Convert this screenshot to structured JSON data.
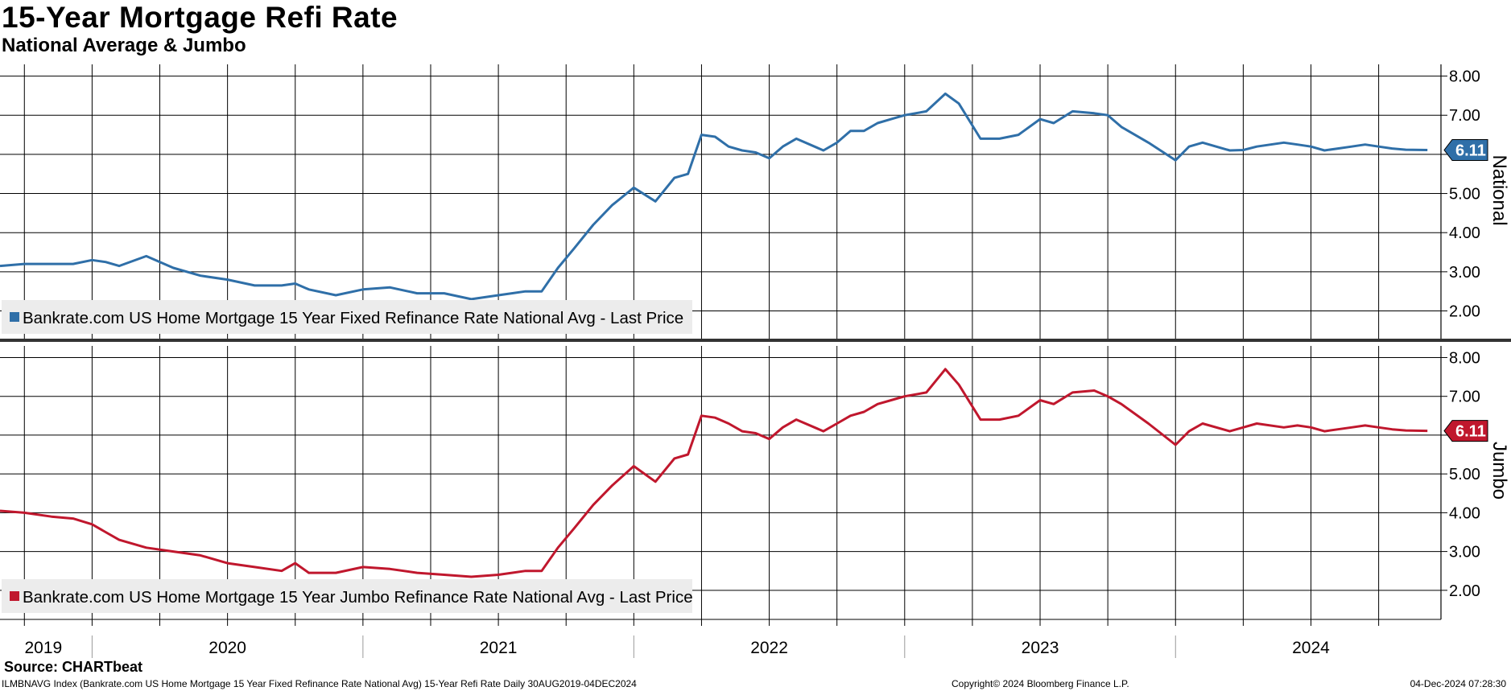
{
  "title": "15-Year Mortgage Refi Rate",
  "subtitle": "National Average & Jumbo",
  "source": "Source: CHARTbeat",
  "footer": {
    "left": "ILMBNAVG Index (Bankrate.com US Home Mortgage 15 Year Fixed Refinance Rate National Avg) 15-Year Refi Rate  Daily 30AUG2019-04DEC2024",
    "center": "Copyright© 2024 Bloomberg Finance L.P.",
    "right": "04-Dec-2024 07:28:30"
  },
  "colors": {
    "national": "#2f6fa8",
    "jumbo": "#c0172d",
    "grid": "#000000"
  },
  "chart_data": [
    {
      "type": "line",
      "panel_label": "National",
      "legend": "Bankrate.com US Home Mortgage 15 Year Fixed Refinance Rate National Avg - Last Price",
      "last_value_label": "6.11",
      "ylim": [
        1.25,
        8.3
      ],
      "yticks": [
        2.0,
        3.0,
        4.0,
        5.0,
        6.0,
        7.0,
        8.0
      ],
      "ytick_labels": [
        "2.00",
        "3.00",
        "4.00",
        "5.00",
        "6.00",
        "7.00",
        "8.00"
      ],
      "x": [
        2019.66,
        2019.75,
        2019.85,
        2019.93,
        2020.0,
        2020.05,
        2020.1,
        2020.2,
        2020.3,
        2020.4,
        2020.5,
        2020.6,
        2020.7,
        2020.75,
        2020.8,
        2020.9,
        2021.0,
        2021.1,
        2021.2,
        2021.3,
        2021.4,
        2021.5,
        2021.55,
        2021.6,
        2021.66,
        2021.72,
        2021.78,
        2021.85,
        2021.92,
        2022.0,
        2022.08,
        2022.15,
        2022.2,
        2022.25,
        2022.3,
        2022.35,
        2022.4,
        2022.45,
        2022.5,
        2022.55,
        2022.6,
        2022.7,
        2022.75,
        2022.8,
        2022.85,
        2022.9,
        2022.95,
        2023.0,
        2023.08,
        2023.15,
        2023.2,
        2023.28,
        2023.35,
        2023.42,
        2023.5,
        2023.55,
        2023.62,
        2023.7,
        2023.75,
        2023.8,
        2023.9,
        2024.0,
        2024.05,
        2024.1,
        2024.2,
        2024.25,
        2024.3,
        2024.4,
        2024.45,
        2024.5,
        2024.55,
        2024.6,
        2024.65,
        2024.7,
        2024.75,
        2024.8,
        2024.85,
        2024.93
      ],
      "y": [
        3.15,
        3.2,
        3.2,
        3.2,
        3.3,
        3.25,
        3.15,
        3.4,
        3.1,
        2.9,
        2.8,
        2.65,
        2.65,
        2.7,
        2.55,
        2.4,
        2.55,
        2.6,
        2.45,
        2.45,
        2.3,
        2.4,
        2.45,
        2.5,
        2.5,
        3.1,
        3.6,
        4.2,
        4.7,
        5.15,
        4.8,
        5.4,
        5.5,
        6.5,
        6.45,
        6.2,
        6.1,
        6.05,
        5.9,
        6.2,
        6.4,
        6.1,
        6.3,
        6.6,
        6.6,
        6.8,
        6.9,
        7.0,
        7.1,
        7.55,
        7.3,
        6.4,
        6.4,
        6.5,
        6.9,
        6.8,
        7.1,
        7.05,
        7.0,
        6.7,
        6.3,
        5.85,
        6.2,
        6.3,
        6.1,
        6.11,
        6.2,
        6.3,
        6.25,
        6.2,
        6.1,
        6.15,
        6.2,
        6.25,
        6.2,
        6.15,
        6.12,
        6.11
      ]
    },
    {
      "type": "line",
      "panel_label": "Jumbo",
      "legend": "Bankrate.com US Home Mortgage 15 Year Jumbo Refinance Rate National Avg - Last Price",
      "last_value_label": "6.11",
      "ylim": [
        1.25,
        8.3
      ],
      "yticks": [
        2.0,
        3.0,
        4.0,
        5.0,
        6.0,
        7.0,
        8.0
      ],
      "ytick_labels": [
        "2.00",
        "3.00",
        "4.00",
        "5.00",
        "6.00",
        "7.00",
        "8.00"
      ],
      "x": [
        2019.66,
        2019.75,
        2019.85,
        2019.93,
        2020.0,
        2020.05,
        2020.1,
        2020.2,
        2020.3,
        2020.4,
        2020.5,
        2020.6,
        2020.7,
        2020.75,
        2020.8,
        2020.9,
        2021.0,
        2021.1,
        2021.2,
        2021.3,
        2021.4,
        2021.5,
        2021.55,
        2021.6,
        2021.66,
        2021.72,
        2021.78,
        2021.85,
        2021.92,
        2022.0,
        2022.08,
        2022.15,
        2022.2,
        2022.25,
        2022.3,
        2022.35,
        2022.4,
        2022.45,
        2022.5,
        2022.55,
        2022.6,
        2022.7,
        2022.75,
        2022.8,
        2022.85,
        2022.9,
        2022.95,
        2023.0,
        2023.08,
        2023.15,
        2023.2,
        2023.28,
        2023.35,
        2023.42,
        2023.5,
        2023.55,
        2023.62,
        2023.7,
        2023.75,
        2023.8,
        2023.9,
        2024.0,
        2024.05,
        2024.1,
        2024.2,
        2024.25,
        2024.3,
        2024.4,
        2024.45,
        2024.5,
        2024.55,
        2024.6,
        2024.65,
        2024.7,
        2024.75,
        2024.8,
        2024.85,
        2024.93
      ],
      "y": [
        4.05,
        4.0,
        3.9,
        3.85,
        3.7,
        3.5,
        3.3,
        3.1,
        3.0,
        2.9,
        2.7,
        2.6,
        2.5,
        2.7,
        2.45,
        2.45,
        2.6,
        2.55,
        2.45,
        2.4,
        2.35,
        2.4,
        2.45,
        2.5,
        2.5,
        3.1,
        3.6,
        4.2,
        4.7,
        5.2,
        4.8,
        5.4,
        5.5,
        6.5,
        6.45,
        6.3,
        6.1,
        6.05,
        5.9,
        6.2,
        6.4,
        6.1,
        6.3,
        6.5,
        6.6,
        6.8,
        6.9,
        7.0,
        7.1,
        7.7,
        7.3,
        6.4,
        6.4,
        6.5,
        6.9,
        6.8,
        7.1,
        7.15,
        7.0,
        6.8,
        6.3,
        5.75,
        6.1,
        6.3,
        6.1,
        6.2,
        6.3,
        6.2,
        6.25,
        6.2,
        6.1,
        6.15,
        6.2,
        6.25,
        6.2,
        6.15,
        6.12,
        6.11
      ]
    }
  ],
  "x_axis": {
    "range": [
      2019.66,
      2024.98
    ],
    "year_labels": [
      {
        "x": 2019.82,
        "label": "2019"
      },
      {
        "x": 2020.5,
        "label": "2020"
      },
      {
        "x": 2021.5,
        "label": "2021"
      },
      {
        "x": 2022.5,
        "label": "2022"
      },
      {
        "x": 2023.5,
        "label": "2023"
      },
      {
        "x": 2024.5,
        "label": "2024"
      }
    ],
    "year_dividers": [
      2020.0,
      2021.0,
      2022.0,
      2023.0,
      2024.0
    ],
    "quarter_gridlines": [
      2019.75,
      2020.0,
      2020.25,
      2020.5,
      2020.75,
      2021.0,
      2021.25,
      2021.5,
      2021.75,
      2022.0,
      2022.25,
      2022.5,
      2022.75,
      2023.0,
      2023.25,
      2023.5,
      2023.75,
      2024.0,
      2024.25,
      2024.5,
      2024.75
    ]
  }
}
